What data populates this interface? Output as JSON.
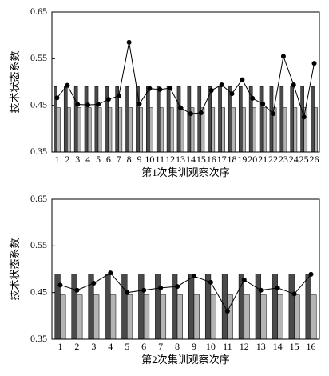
{
  "chart_data": [
    {
      "type": "bar",
      "x_label": "第1次集训观察次序",
      "y_label": "技术状态系数",
      "categories": [
        "1",
        "2",
        "3",
        "4",
        "5",
        "6",
        "7",
        "8",
        "9",
        "10",
        "11",
        "12",
        "13",
        "14",
        "15",
        "16",
        "17",
        "18",
        "19",
        "20",
        "21",
        "22",
        "23",
        "24",
        "25",
        "26"
      ],
      "series": [
        {
          "type": "bar",
          "color": "#4a4a4a",
          "values": [
            0.49,
            0.49,
            0.49,
            0.49,
            0.49,
            0.49,
            0.49,
            0.49,
            0.49,
            0.49,
            0.49,
            0.49,
            0.49,
            0.49,
            0.49,
            0.49,
            0.49,
            0.49,
            0.49,
            0.49,
            0.49,
            0.49,
            0.49,
            0.49,
            0.49,
            0.49
          ]
        },
        {
          "type": "bar",
          "color": "#b4b4b4",
          "values": [
            0.445,
            0.445,
            0.445,
            0.445,
            0.445,
            0.445,
            0.445,
            0.445,
            0.445,
            0.445,
            0.445,
            0.445,
            0.445,
            0.445,
            0.445,
            0.445,
            0.445,
            0.445,
            0.445,
            0.445,
            0.445,
            0.445,
            0.445,
            0.445,
            0.445,
            0.445
          ]
        },
        {
          "type": "line",
          "color": "#000000",
          "values": [
            0.466,
            0.493,
            0.452,
            0.451,
            0.452,
            0.463,
            0.47,
            0.585,
            0.453,
            0.486,
            0.484,
            0.487,
            0.445,
            0.432,
            0.434,
            0.482,
            0.494,
            0.475,
            0.505,
            0.465,
            0.453,
            0.432,
            0.555,
            0.494,
            0.425,
            0.54
          ]
        }
      ],
      "ylim": [
        0.35,
        0.65
      ],
      "yticks": [
        0.35,
        0.45,
        0.55,
        0.65
      ]
    },
    {
      "type": "bar",
      "x_label": "第2次集训观察次序",
      "y_label": "技术状态系数",
      "categories": [
        "1",
        "2",
        "3",
        "4",
        "5",
        "6",
        "7",
        "8",
        "9",
        "10",
        "11",
        "12",
        "13",
        "14",
        "15",
        "16"
      ],
      "series": [
        {
          "type": "bar",
          "color": "#4a4a4a",
          "values": [
            0.49,
            0.49,
            0.49,
            0.49,
            0.49,
            0.49,
            0.49,
            0.49,
            0.49,
            0.49,
            0.49,
            0.49,
            0.49,
            0.49,
            0.49,
            0.49
          ]
        },
        {
          "type": "bar",
          "color": "#b4b4b4",
          "values": [
            0.445,
            0.445,
            0.445,
            0.445,
            0.445,
            0.445,
            0.445,
            0.445,
            0.445,
            0.445,
            0.445,
            0.445,
            0.445,
            0.445,
            0.445,
            0.445
          ]
        },
        {
          "type": "line",
          "color": "#000000",
          "values": [
            0.466,
            0.455,
            0.47,
            0.492,
            0.45,
            0.455,
            0.46,
            0.463,
            0.485,
            0.472,
            0.41,
            0.477,
            0.455,
            0.46,
            0.447,
            0.489
          ]
        }
      ],
      "ylim": [
        0.35,
        0.65
      ],
      "yticks": [
        0.35,
        0.45,
        0.55,
        0.65
      ]
    }
  ]
}
